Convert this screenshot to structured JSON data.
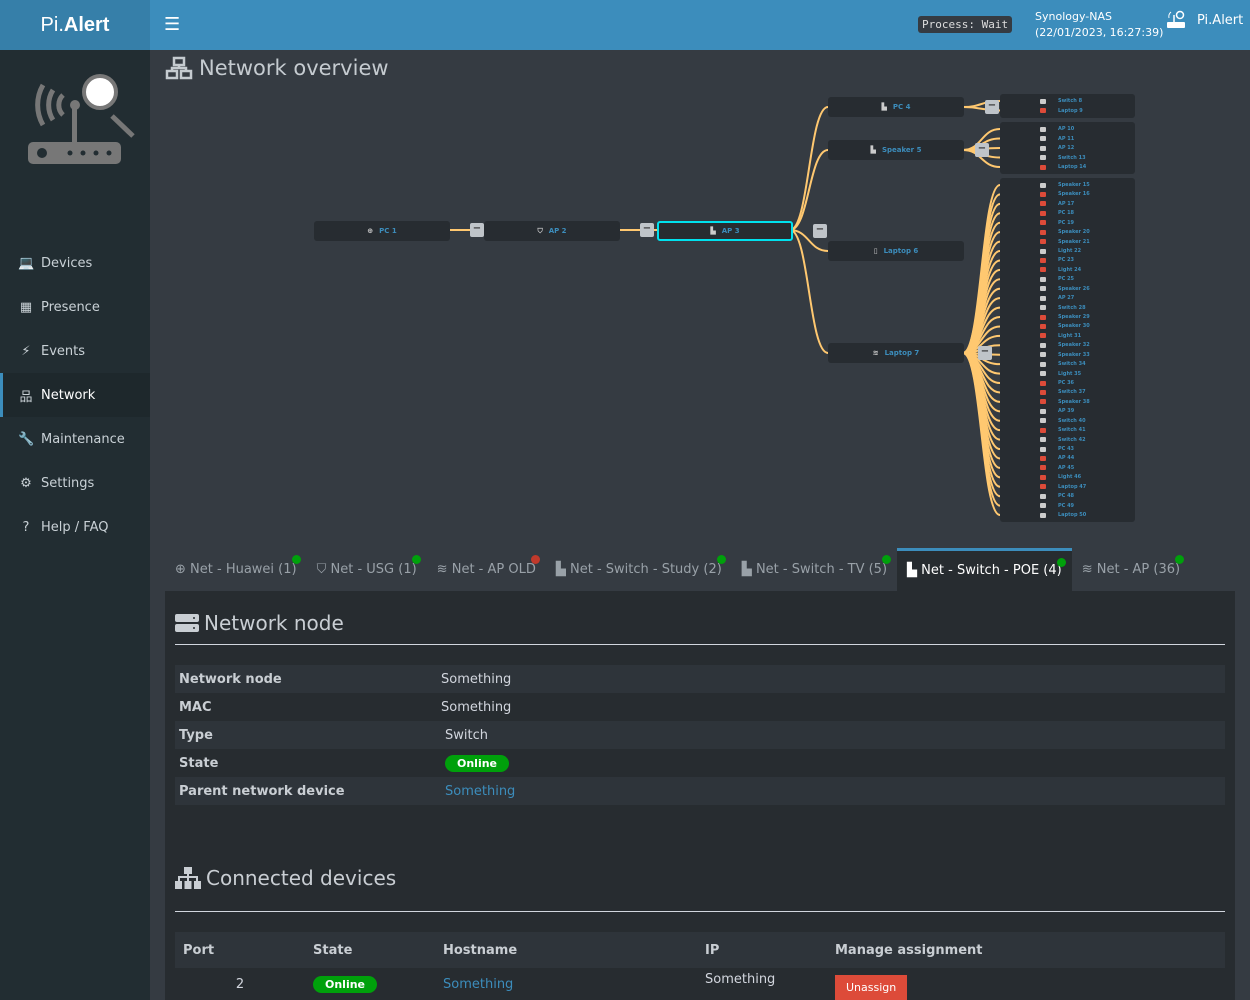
{
  "app": {
    "logo_prefix": "Pi.",
    "logo_suffix": "Alert",
    "process": "Process: Wait",
    "host": "Synology-NAS",
    "datetime": "(22/01/2023, 16:27:39)",
    "brand": "Pi.Alert"
  },
  "sidebar": {
    "items": [
      {
        "label": "Devices",
        "icon": "laptop-icon"
      },
      {
        "label": "Presence",
        "icon": "calendar-icon"
      },
      {
        "label": "Events",
        "icon": "bolt-icon"
      },
      {
        "label": "Network",
        "icon": "sitemap-icon",
        "active": true
      },
      {
        "label": "Maintenance",
        "icon": "wrench-icon"
      },
      {
        "label": "Settings",
        "icon": "gear-icon"
      },
      {
        "label": "Help / FAQ",
        "icon": "question-icon"
      }
    ]
  },
  "page_title": "Network overview",
  "tree": {
    "chain": [
      {
        "name": "PC 1",
        "icon": "globe-icon"
      },
      {
        "name": "AP 2",
        "icon": "shield-icon"
      },
      {
        "name": "AP 3",
        "icon": "ethernet-icon",
        "selected": true
      }
    ],
    "children": [
      {
        "name": "PC 4",
        "icon": "ethernet-icon"
      },
      {
        "name": "Speaker 5",
        "icon": "ethernet-icon"
      },
      {
        "name": "Laptop 6",
        "icon": "device-icon"
      },
      {
        "name": "Laptop 7",
        "icon": "wifi-icon"
      }
    ],
    "leaves": [
      {
        "parent": 0,
        "items": [
          [
            "Switch 8",
            1
          ],
          [
            "Laptop 9",
            0
          ]
        ]
      },
      {
        "parent": 1,
        "items": [
          [
            "AP 10",
            1
          ],
          [
            "AP 11",
            1
          ],
          [
            "AP 12",
            1
          ],
          [
            "Switch 13",
            1
          ],
          [
            "Laptop 14",
            0
          ]
        ]
      },
      {
        "parent": 3,
        "items": [
          [
            "Speaker 15",
            1
          ],
          [
            "Speaker 16",
            0
          ],
          [
            "AP 17",
            0
          ],
          [
            "PC 18",
            0
          ],
          [
            "PC 19",
            0
          ],
          [
            "Speaker 20",
            0
          ],
          [
            "Speaker 21",
            0
          ],
          [
            "Light 22",
            1
          ],
          [
            "PC 23",
            0
          ],
          [
            "Light 24",
            0
          ],
          [
            "PC 25",
            1
          ],
          [
            "Speaker 26",
            1
          ],
          [
            "AP 27",
            1
          ],
          [
            "Switch 28",
            1
          ],
          [
            "Speaker 29",
            0
          ],
          [
            "Speaker 30",
            0
          ],
          [
            "Light 31",
            0
          ],
          [
            "Speaker 32",
            1
          ],
          [
            "Speaker 33",
            1
          ],
          [
            "Switch 34",
            1
          ],
          [
            "Light 35",
            1
          ],
          [
            "PC 36",
            0
          ],
          [
            "Switch 37",
            0
          ],
          [
            "Speaker 38",
            0
          ],
          [
            "AP 39",
            1
          ],
          [
            "Switch 40",
            1
          ],
          [
            "Switch 41",
            0
          ],
          [
            "Switch 42",
            1
          ],
          [
            "PC 43",
            1
          ],
          [
            "AP 44",
            0
          ],
          [
            "AP 45",
            0
          ],
          [
            "Light 46",
            0
          ],
          [
            "Laptop 47",
            0
          ],
          [
            "PC 48",
            1
          ],
          [
            "PC 49",
            1
          ],
          [
            "Laptop 50",
            1
          ]
        ]
      }
    ],
    "collapse_label": "−"
  },
  "tabs": [
    {
      "label": "Net - Huawei (1)",
      "icon": "globe-icon",
      "status": "online"
    },
    {
      "label": "Net - USG (1)",
      "icon": "shield-icon",
      "status": "online"
    },
    {
      "label": "Net - AP OLD",
      "icon": "wifi-icon",
      "status": "offline"
    },
    {
      "label": "Net - Switch - Study (2)",
      "icon": "ethernet-icon",
      "status": "online"
    },
    {
      "label": "Net - Switch - TV (5)",
      "icon": "ethernet-icon",
      "status": "online"
    },
    {
      "label": "Net - Switch - POE (4)",
      "icon": "ethernet-icon",
      "status": "online",
      "active": true
    },
    {
      "label": "Net - AP (36)",
      "icon": "wifi-icon",
      "status": "online"
    }
  ],
  "colors": {
    "online": "#00a00b",
    "offline": "#c0392b",
    "accent": "#3c8dbc",
    "link": "#ffc870"
  },
  "node": {
    "title": "Network node",
    "rows": {
      "node_label": "Network node",
      "node_value": "Something",
      "mac_label": "MAC",
      "mac_value": "Something",
      "type_label": "Type",
      "type_value": "Switch",
      "state_label": "State",
      "state_value": "Online",
      "parent_label": "Parent network device",
      "parent_value": "Something"
    }
  },
  "connected": {
    "title": "Connected devices",
    "headers": [
      "Port",
      "State",
      "Hostname",
      "IP",
      "Manage assignment"
    ],
    "rows": [
      {
        "port": "2",
        "state": "Online",
        "hostname": "Something",
        "ip": "Something",
        "action": "Unassign"
      }
    ]
  }
}
